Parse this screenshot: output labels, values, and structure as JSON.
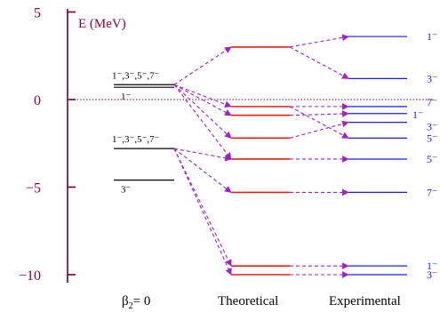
{
  "axis": {
    "title": "E (MeV)",
    "ticks": [
      {
        "value": 5,
        "label": "5"
      },
      {
        "value": 0,
        "label": "0"
      },
      {
        "value": -5,
        "label": "−5"
      },
      {
        "value": -10,
        "label": "−10"
      }
    ],
    "range": [
      -10.7,
      5.3
    ]
  },
  "columns": {
    "unperturbed": "β",
    "unperturbed_sub": "2",
    "unperturbed_eq": "= 0",
    "theoretical": "Theoretical",
    "experimental": "Experimental"
  },
  "colors": {
    "axis": "#6b0033",
    "zero_line": "#8b0046",
    "unperturbed": "#000000",
    "theoretical": "#e0201a",
    "experimental": "#1a1aff",
    "arrow": "#a020d0"
  },
  "chart_data": {
    "type": "level-scheme",
    "unit": "MeV",
    "unperturbed_levels": [
      {
        "id": "u1",
        "energy": 0.85,
        "labels": [
          "1⁻,3⁻,5⁻,7⁻"
        ]
      },
      {
        "id": "u2",
        "energy": 0.7,
        "labels": [
          "1⁻"
        ]
      },
      {
        "id": "u3",
        "energy": -2.8,
        "labels": [
          "1⁻,3⁻,5⁻,7⁻"
        ]
      },
      {
        "id": "u4",
        "energy": -4.6,
        "labels": [
          "3⁻"
        ]
      }
    ],
    "theoretical_levels": [
      {
        "id": "t1",
        "energy": 3.0
      },
      {
        "id": "t2",
        "energy": -0.4
      },
      {
        "id": "t3",
        "energy": -0.9
      },
      {
        "id": "t4",
        "energy": -2.2
      },
      {
        "id": "t5",
        "energy": -3.4
      },
      {
        "id": "t6",
        "energy": -5.3
      },
      {
        "id": "t7",
        "energy": -9.5
      },
      {
        "id": "t8",
        "energy": -10.0
      }
    ],
    "experimental_levels": [
      {
        "id": "e1",
        "energy": 3.6,
        "label": "1⁻"
      },
      {
        "id": "e2",
        "energy": 1.2,
        "label": "3⁻"
      },
      {
        "id": "e3",
        "energy": -0.4,
        "label": "7⁻"
      },
      {
        "id": "e4",
        "energy": -0.8,
        "label": "1⁻"
      },
      {
        "id": "e5",
        "energy": -1.3,
        "label": "3⁻"
      },
      {
        "id": "e6",
        "energy": -2.2,
        "label": "5⁻"
      },
      {
        "id": "e7",
        "energy": -3.4,
        "label": "5⁻"
      },
      {
        "id": "e8",
        "energy": -5.3,
        "label": "7⁻"
      },
      {
        "id": "e9",
        "energy": -9.5,
        "label": "1⁻"
      },
      {
        "id": "e10",
        "energy": -10.0,
        "label": "3⁻"
      }
    ],
    "transitions": [
      {
        "from": "u1",
        "to": "t1"
      },
      {
        "from": "u1",
        "to": "t2"
      },
      {
        "from": "u1",
        "to": "t3"
      },
      {
        "from": "u1",
        "to": "t4"
      },
      {
        "from": "u1",
        "to": "t5"
      },
      {
        "from": "u3",
        "to": "t5"
      },
      {
        "from": "u3",
        "to": "t6"
      },
      {
        "from": "u3",
        "to": "t7"
      },
      {
        "from": "u3",
        "to": "t8"
      },
      {
        "from": "t1",
        "to": "e1"
      },
      {
        "from": "t1",
        "to": "e2"
      },
      {
        "from": "t2",
        "to": "e3"
      },
      {
        "from": "t2",
        "to": "e6"
      },
      {
        "from": "t3",
        "to": "e4"
      },
      {
        "from": "t4",
        "to": "e5"
      },
      {
        "from": "t5",
        "to": "e7"
      },
      {
        "from": "t6",
        "to": "e8"
      },
      {
        "from": "t7",
        "to": "e9"
      },
      {
        "from": "t8",
        "to": "e10"
      }
    ]
  }
}
